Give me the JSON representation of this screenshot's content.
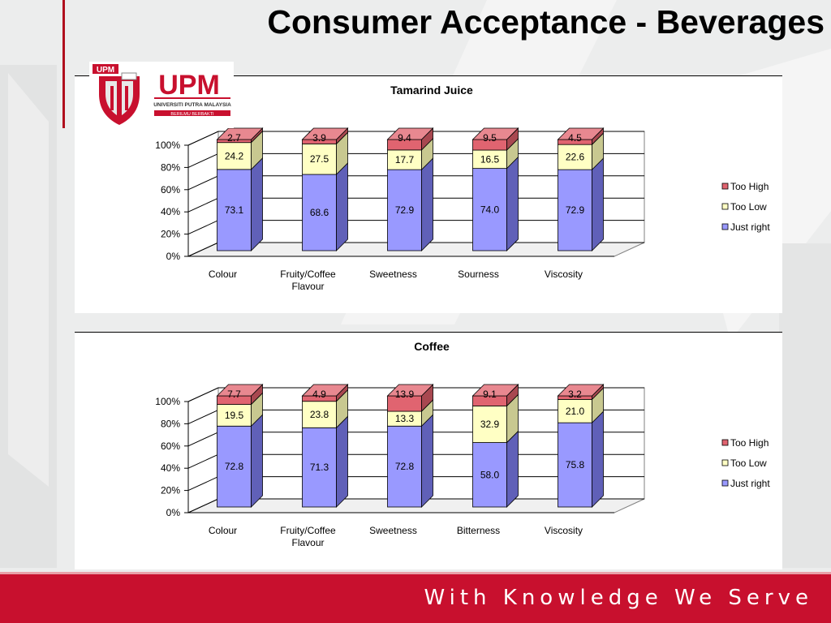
{
  "slide": {
    "title": "Consumer Acceptance - Beverages",
    "motto": "With Knowledge We Serve",
    "logo": {
      "icon": "upm-logo",
      "acronym": "UPM",
      "name": "UNIVERSITI PUTRA MALAYSIA",
      "tagline": "BERILMU BERBAKTI"
    }
  },
  "colors": {
    "too_high": "#e06470",
    "too_low": "#ffffc4",
    "just_right": "#9999ff",
    "footer": "#c8102e"
  },
  "chart_data": [
    {
      "type": "bar",
      "stacked": true,
      "title": "Tamarind Juice",
      "categories": [
        "Colour",
        "Fruity/Coffee Flavour",
        "Sweetness",
        "Sourness",
        "Viscosity"
      ],
      "series": [
        {
          "name": "Just right",
          "values": [
            73.1,
            68.6,
            72.9,
            74.0,
            72.9
          ],
          "labels": [
            "73.1",
            "68.6",
            "72.9",
            "74.0",
            "72.9"
          ]
        },
        {
          "name": "Too Low",
          "values": [
            24.2,
            27.5,
            17.7,
            16.5,
            22.6
          ],
          "labels": [
            "24.2",
            "27.5",
            "17.7",
            "16.5",
            "22.6"
          ]
        },
        {
          "name": "Too High",
          "values": [
            2.7,
            3.9,
            9.4,
            9.5,
            4.5
          ],
          "labels": [
            "2.7",
            "3.9",
            "9.4",
            "9.5",
            "4.5"
          ]
        }
      ],
      "y_ticks": [
        "0%",
        "20%",
        "40%",
        "60%",
        "80%",
        "100%"
      ],
      "ylim": [
        0,
        100
      ],
      "legend": [
        "Too High",
        "Too Low",
        "Just right"
      ],
      "legend_position": "right",
      "grid": true
    },
    {
      "type": "bar",
      "stacked": true,
      "title": "Coffee",
      "categories": [
        "Colour",
        "Fruity/Coffee Flavour",
        "Sweetness",
        "Bitterness",
        "Viscosity"
      ],
      "series": [
        {
          "name": "Just right",
          "values": [
            72.8,
            71.3,
            72.8,
            58.0,
            75.8
          ],
          "labels": [
            "72.8",
            "71.3",
            "72.8",
            "58.0",
            "75.8"
          ]
        },
        {
          "name": "Too Low",
          "values": [
            19.5,
            23.8,
            13.3,
            32.9,
            21.0
          ],
          "labels": [
            "19.5",
            "23.8",
            "13.3",
            "32.9",
            "21.0"
          ]
        },
        {
          "name": "Too High",
          "values": [
            7.7,
            4.9,
            13.9,
            9.1,
            3.2
          ],
          "labels": [
            "7.7",
            "4.9",
            "13.9",
            "9.1",
            "3.2"
          ]
        }
      ],
      "y_ticks": [
        "0%",
        "20%",
        "40%",
        "60%",
        "80%",
        "100%"
      ],
      "ylim": [
        0,
        100
      ],
      "legend": [
        "Too High",
        "Too Low",
        "Just right"
      ],
      "legend_position": "right",
      "grid": true
    }
  ]
}
